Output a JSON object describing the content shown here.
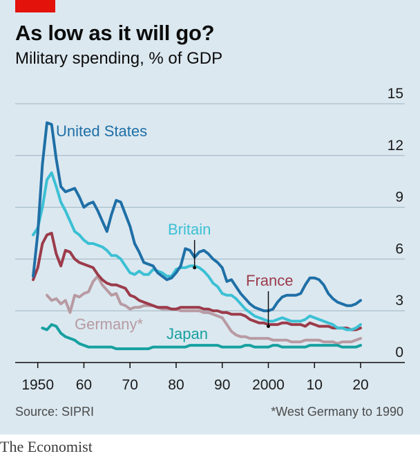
{
  "header": {
    "title": "As low as it will go?",
    "subtitle": "Military spending, % of GDP"
  },
  "footer": {
    "source": "Source: SIPRI",
    "footnote": "*West Germany to 1990",
    "logo": "The Economist"
  },
  "colors": {
    "brand_red": "#e3120b",
    "background": "#dbe8f0",
    "united_states": "#1f6fa6",
    "britain": "#3cc0d4",
    "france": "#9b3b4a",
    "germany": "#b89aa2",
    "japan": "#17a0a0"
  },
  "chart_data": {
    "type": "line",
    "title": "As low as it will go?",
    "subtitle": "Military spending, % of GDP",
    "xlabel": "",
    "ylabel": "",
    "xlim": [
      1948,
      2022
    ],
    "ylim": [
      0,
      15
    ],
    "grid": true,
    "y_ticks": [
      0,
      3,
      6,
      9,
      12,
      15
    ],
    "x_ticks": [
      1950,
      1960,
      1970,
      1980,
      1990,
      2000,
      2010,
      2020
    ],
    "x_tick_labels": [
      "1950",
      "60",
      "70",
      "80",
      "90",
      "2000",
      "10",
      "20"
    ],
    "series": [
      {
        "name": "United States",
        "color": "#1f6fa6",
        "x": [
          1949,
          1950,
          1951,
          1952,
          1953,
          1954,
          1955,
          1956,
          1957,
          1958,
          1959,
          1960,
          1961,
          1962,
          1963,
          1964,
          1965,
          1966,
          1967,
          1968,
          1969,
          1970,
          1971,
          1972,
          1973,
          1974,
          1975,
          1976,
          1977,
          1978,
          1979,
          1980,
          1981,
          1982,
          1983,
          1984,
          1985,
          1986,
          1987,
          1988,
          1989,
          1990,
          1991,
          1992,
          1993,
          1994,
          1995,
          1996,
          1997,
          1998,
          1999,
          2000,
          2001,
          2002,
          2003,
          2004,
          2005,
          2006,
          2007,
          2008,
          2009,
          2010,
          2011,
          2012,
          2013,
          2014,
          2015,
          2016,
          2017,
          2018,
          2019,
          2020
        ],
        "values": [
          5.0,
          7.5,
          11.5,
          13.9,
          13.8,
          11.8,
          10.2,
          9.9,
          10.0,
          10.1,
          9.6,
          9.0,
          9.2,
          9.3,
          8.8,
          8.2,
          7.6,
          8.6,
          9.4,
          9.3,
          8.6,
          7.9,
          6.9,
          6.4,
          5.8,
          5.7,
          5.6,
          5.2,
          5.0,
          4.8,
          4.9,
          5.2,
          5.6,
          6.6,
          6.5,
          6.1,
          6.4,
          6.5,
          6.3,
          6.0,
          5.8,
          5.5,
          4.7,
          4.8,
          4.4,
          4.0,
          3.7,
          3.4,
          3.2,
          3.1,
          3.0,
          3.0,
          3.1,
          3.5,
          3.8,
          3.9,
          3.9,
          3.9,
          4.0,
          4.5,
          4.9,
          4.9,
          4.8,
          4.5,
          4.0,
          3.7,
          3.5,
          3.4,
          3.3,
          3.3,
          3.4,
          3.6
        ]
      },
      {
        "name": "Britain",
        "color": "#3cc0d4",
        "x": [
          1949,
          1950,
          1951,
          1952,
          1953,
          1954,
          1955,
          1956,
          1957,
          1958,
          1959,
          1960,
          1961,
          1962,
          1963,
          1964,
          1965,
          1966,
          1967,
          1968,
          1969,
          1970,
          1971,
          1972,
          1973,
          1974,
          1975,
          1976,
          1977,
          1978,
          1979,
          1980,
          1981,
          1982,
          1983,
          1984,
          1985,
          1986,
          1987,
          1988,
          1989,
          1990,
          1991,
          1992,
          1993,
          1994,
          1995,
          1996,
          1997,
          1998,
          1999,
          2000,
          2001,
          2002,
          2003,
          2004,
          2005,
          2006,
          2007,
          2008,
          2009,
          2010,
          2011,
          2012,
          2013,
          2014,
          2015,
          2016,
          2017,
          2018,
          2019,
          2020
        ],
        "values": [
          7.4,
          7.8,
          9.0,
          10.6,
          11.0,
          10.2,
          9.3,
          8.8,
          8.2,
          7.6,
          7.4,
          7.1,
          6.9,
          6.9,
          6.8,
          6.7,
          6.5,
          6.2,
          6.2,
          6.0,
          5.6,
          5.2,
          5.1,
          5.3,
          5.1,
          5.1,
          5.4,
          5.3,
          5.2,
          5.0,
          5.0,
          5.4,
          5.5,
          5.5,
          5.6,
          5.6,
          5.5,
          5.3,
          5.0,
          4.6,
          4.4,
          4.0,
          3.9,
          3.9,
          3.7,
          3.4,
          3.1,
          2.9,
          2.7,
          2.6,
          2.5,
          2.4,
          2.4,
          2.5,
          2.6,
          2.5,
          2.4,
          2.4,
          2.4,
          2.5,
          2.7,
          2.6,
          2.5,
          2.4,
          2.3,
          2.2,
          2.0,
          2.0,
          1.9,
          1.9,
          2.0,
          2.2
        ]
      },
      {
        "name": "France",
        "color": "#9b3b4a",
        "x": [
          1949,
          1950,
          1951,
          1952,
          1953,
          1954,
          1955,
          1956,
          1957,
          1958,
          1959,
          1960,
          1961,
          1962,
          1963,
          1964,
          1965,
          1966,
          1967,
          1968,
          1969,
          1970,
          1971,
          1972,
          1973,
          1974,
          1975,
          1976,
          1977,
          1978,
          1979,
          1980,
          1981,
          1982,
          1983,
          1984,
          1985,
          1986,
          1987,
          1988,
          1989,
          1990,
          1991,
          1992,
          1993,
          1994,
          1995,
          1996,
          1997,
          1998,
          1999,
          2000,
          2001,
          2002,
          2003,
          2004,
          2005,
          2006,
          2007,
          2008,
          2009,
          2010,
          2011,
          2012,
          2013,
          2014,
          2015,
          2016,
          2017,
          2018,
          2019,
          2020
        ],
        "values": [
          4.8,
          5.5,
          6.9,
          7.4,
          7.5,
          6.3,
          5.6,
          6.5,
          6.4,
          6.0,
          5.8,
          5.7,
          5.6,
          5.5,
          5.1,
          4.8,
          4.6,
          4.5,
          4.5,
          4.4,
          4.3,
          3.9,
          3.8,
          3.6,
          3.5,
          3.4,
          3.3,
          3.2,
          3.2,
          3.2,
          3.1,
          3.1,
          3.2,
          3.2,
          3.2,
          3.2,
          3.2,
          3.1,
          3.1,
          3.0,
          3.0,
          2.9,
          2.9,
          2.8,
          2.8,
          2.8,
          2.7,
          2.5,
          2.4,
          2.3,
          2.3,
          2.2,
          2.2,
          2.2,
          2.3,
          2.3,
          2.2,
          2.2,
          2.2,
          2.1,
          2.3,
          2.2,
          2.1,
          2.1,
          2.1,
          2.0,
          2.0,
          2.0,
          2.0,
          1.9,
          1.9,
          2.0
        ]
      },
      {
        "name": "Germany*",
        "color": "#b89aa2",
        "x": [
          1952,
          1953,
          1954,
          1955,
          1956,
          1957,
          1958,
          1959,
          1960,
          1961,
          1962,
          1963,
          1964,
          1965,
          1966,
          1967,
          1968,
          1969,
          1970,
          1971,
          1972,
          1973,
          1974,
          1975,
          1976,
          1977,
          1978,
          1979,
          1980,
          1981,
          1982,
          1983,
          1984,
          1985,
          1986,
          1987,
          1988,
          1989,
          1990,
          1991,
          1992,
          1993,
          1994,
          1995,
          1996,
          1997,
          1998,
          1999,
          2000,
          2001,
          2002,
          2003,
          2004,
          2005,
          2006,
          2007,
          2008,
          2009,
          2010,
          2011,
          2012,
          2013,
          2014,
          2015,
          2016,
          2017,
          2018,
          2019,
          2020
        ],
        "values": [
          3.9,
          3.6,
          3.7,
          3.4,
          3.6,
          2.9,
          3.9,
          3.8,
          4.0,
          4.1,
          4.7,
          5.0,
          4.5,
          4.2,
          3.9,
          4.0,
          3.4,
          3.3,
          3.1,
          3.2,
          3.2,
          3.3,
          3.3,
          3.3,
          3.2,
          3.1,
          3.1,
          3.1,
          3.1,
          3.0,
          3.0,
          3.0,
          3.0,
          3.0,
          2.9,
          2.9,
          2.8,
          2.7,
          2.6,
          2.2,
          1.8,
          1.6,
          1.5,
          1.5,
          1.4,
          1.4,
          1.4,
          1.4,
          1.4,
          1.3,
          1.3,
          1.3,
          1.3,
          1.2,
          1.2,
          1.2,
          1.3,
          1.3,
          1.3,
          1.3,
          1.2,
          1.2,
          1.2,
          1.1,
          1.2,
          1.2,
          1.2,
          1.3,
          1.4
        ]
      },
      {
        "name": "Japan",
        "color": "#17a0a0",
        "x": [
          1951,
          1952,
          1953,
          1954,
          1955,
          1956,
          1957,
          1958,
          1959,
          1960,
          1961,
          1962,
          1963,
          1964,
          1965,
          1966,
          1967,
          1968,
          1969,
          1970,
          1971,
          1972,
          1973,
          1974,
          1975,
          1976,
          1977,
          1978,
          1979,
          1980,
          1981,
          1982,
          1983,
          1984,
          1985,
          1986,
          1987,
          1988,
          1989,
          1990,
          1991,
          1992,
          1993,
          1994,
          1995,
          1996,
          1997,
          1998,
          1999,
          2000,
          2001,
          2002,
          2003,
          2004,
          2005,
          2006,
          2007,
          2008,
          2009,
          2010,
          2011,
          2012,
          2013,
          2014,
          2015,
          2016,
          2017,
          2018,
          2019,
          2020
        ],
        "values": [
          2.0,
          1.9,
          2.2,
          2.1,
          1.7,
          1.5,
          1.4,
          1.3,
          1.1,
          1.0,
          0.9,
          0.9,
          0.9,
          0.9,
          0.9,
          0.9,
          0.8,
          0.8,
          0.8,
          0.8,
          0.8,
          0.8,
          0.8,
          0.8,
          0.9,
          0.9,
          0.9,
          0.9,
          0.9,
          0.9,
          0.9,
          0.9,
          1.0,
          1.0,
          1.0,
          1.0,
          1.0,
          1.0,
          1.0,
          0.9,
          0.9,
          0.9,
          0.9,
          0.9,
          1.0,
          1.0,
          0.9,
          0.9,
          0.9,
          0.9,
          1.0,
          1.0,
          0.9,
          0.9,
          0.9,
          0.9,
          0.9,
          0.9,
          1.0,
          1.0,
          1.0,
          1.0,
          1.0,
          1.0,
          1.0,
          0.9,
          0.9,
          0.9,
          0.9,
          1.0
        ]
      }
    ],
    "annotations": [
      {
        "text": "United States",
        "series": "United States"
      },
      {
        "text": "Britain",
        "series": "Britain",
        "x": 1984,
        "y": 5.5
      },
      {
        "text": "France",
        "series": "France",
        "x": 2000,
        "y": 2.1
      },
      {
        "text": "Germany*",
        "series": "Germany*"
      },
      {
        "text": "Japan",
        "series": "Japan"
      }
    ]
  }
}
